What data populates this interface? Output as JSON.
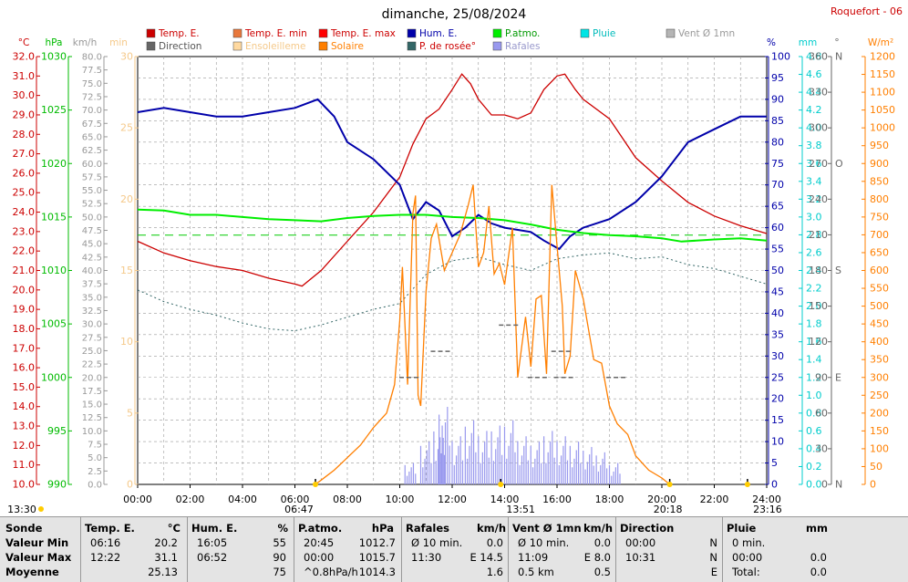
{
  "header": {
    "title": "dimanche, 25/08/2024",
    "station": "Roquefort - 06"
  },
  "legend": [
    {
      "label": "Temp. E.",
      "color": "#cc0000",
      "text_color": "#cc0000",
      "swatch": "square"
    },
    {
      "label": "Temp. E. min",
      "color": "#e8783c",
      "text_color": "#cc0000",
      "swatch": "square"
    },
    {
      "label": "Temp. E. max",
      "color": "#ff0000",
      "text_color": "#cc0000",
      "swatch": "square"
    },
    {
      "label": "Hum. E.",
      "color": "#0000aa",
      "text_color": "#0000aa",
      "swatch": "square"
    },
    {
      "label": "P.atmo.",
      "color": "#00ee00",
      "text_color": "#009900",
      "swatch": "square"
    },
    {
      "label": "Pluie",
      "color": "#00e5e5",
      "text_color": "#00bbbb",
      "swatch": "square"
    },
    {
      "label": "Vent Ø 1mn",
      "color": "#b5b5b5",
      "text_color": "#999999",
      "swatch": "square"
    },
    {
      "label": "Direction",
      "color": "#666666",
      "text_color": "#555555",
      "swatch": "square"
    },
    {
      "label": "Ensoleilleme",
      "color": "#ffd9a0",
      "text_color": "#f5c98a",
      "swatch": "square"
    },
    {
      "label": "Solaire",
      "color": "#ff7f00",
      "text_color": "#ff7f00",
      "swatch": "square"
    },
    {
      "label": "P. de rosée°",
      "color": "#336666",
      "text_color": "#cc0000",
      "swatch": "square"
    },
    {
      "label": "Rafales",
      "color": "#9999ee",
      "text_color": "#9999cc",
      "swatch": "square"
    }
  ],
  "axes": {
    "temperature": {
      "unit": "°C",
      "color": "#cc0000",
      "min": 10.0,
      "max": 32.0,
      "step": 1.0
    },
    "pressure": {
      "unit": "hPa",
      "color": "#00bb00",
      "min": 990,
      "max": 1030,
      "step": 5
    },
    "wind": {
      "unit": "km/h",
      "color": "#999999",
      "min": 0,
      "max": 80,
      "step": 2.5
    },
    "minutes": {
      "unit": "min",
      "color": "#f5c98a",
      "min": 0,
      "max": 30,
      "step": 5
    },
    "humidity": {
      "unit": "%",
      "color": "#0000aa",
      "min": 0,
      "max": 100,
      "step": 5
    },
    "rain": {
      "unit": "mm",
      "color": "#00cccc",
      "min": 0,
      "max": 4.8,
      "step": 0.2
    },
    "direction": {
      "unit": "°",
      "color": "#666666",
      "min": 0,
      "max": 360,
      "step": 30,
      "cardinal_labels": {
        "0": "N",
        "90": "E",
        "180": "S",
        "270": "O",
        "360": "N"
      }
    },
    "solar": {
      "unit": "W/m²",
      "color": "#ff7f00",
      "min": 0,
      "max": 1200,
      "step": 50
    },
    "time": {
      "labels": [
        "00:00",
        "02:00",
        "04:00",
        "06:00",
        "08:00",
        "10:00",
        "12:00",
        "14:00",
        "16:00",
        "18:00",
        "20:00",
        "22:00",
        "24:00"
      ]
    }
  },
  "markers": {
    "sunrise": "06:47",
    "solar_noon": "13:51",
    "sunset": "20:18",
    "moonset": "13:30",
    "moonrise": "23:16"
  },
  "chart_data": {
    "type": "line",
    "x_unit": "hours",
    "series": [
      {
        "name": "Temp. E.",
        "color": "#cc0000",
        "axis": "temperature",
        "points": [
          [
            0,
            22.5
          ],
          [
            1,
            21.9
          ],
          [
            2,
            21.5
          ],
          [
            3,
            21.2
          ],
          [
            4,
            21.0
          ],
          [
            5,
            20.6
          ],
          [
            6,
            20.3
          ],
          [
            6.27,
            20.2
          ],
          [
            7,
            21.0
          ],
          [
            8,
            22.5
          ],
          [
            9,
            24.0
          ],
          [
            10,
            25.8
          ],
          [
            10.5,
            27.5
          ],
          [
            11,
            28.8
          ],
          [
            11.5,
            29.3
          ],
          [
            12.0,
            30.3
          ],
          [
            12.37,
            31.1
          ],
          [
            12.7,
            30.6
          ],
          [
            13,
            29.8
          ],
          [
            13.5,
            29.0
          ],
          [
            14,
            29.0
          ],
          [
            14.5,
            28.8
          ],
          [
            15,
            29.1
          ],
          [
            15.5,
            30.3
          ],
          [
            16,
            31.0
          ],
          [
            16.3,
            31.1
          ],
          [
            16.7,
            30.3
          ],
          [
            17,
            29.8
          ],
          [
            18,
            28.8
          ],
          [
            18.5,
            27.8
          ],
          [
            19,
            26.8
          ],
          [
            20,
            25.6
          ],
          [
            21,
            24.5
          ],
          [
            22,
            23.8
          ],
          [
            23,
            23.3
          ],
          [
            24,
            22.9
          ]
        ]
      },
      {
        "name": "P. de rosée°",
        "color": "#336666",
        "axis": "temperature",
        "points": [
          [
            0,
            20.0
          ],
          [
            1,
            19.4
          ],
          [
            2,
            19.0
          ],
          [
            3,
            18.7
          ],
          [
            4,
            18.3
          ],
          [
            5,
            18.0
          ],
          [
            6,
            17.9
          ],
          [
            7,
            18.2
          ],
          [
            8,
            18.6
          ],
          [
            9,
            19.0
          ],
          [
            10,
            19.3
          ],
          [
            11,
            20.8
          ],
          [
            12,
            21.5
          ],
          [
            13,
            21.7
          ],
          [
            14,
            21.3
          ],
          [
            15,
            21.0
          ],
          [
            16,
            21.6
          ],
          [
            17,
            21.8
          ],
          [
            18,
            21.9
          ],
          [
            19,
            21.6
          ],
          [
            20,
            21.7
          ],
          [
            21,
            21.3
          ],
          [
            22,
            21.1
          ],
          [
            23,
            20.7
          ],
          [
            24,
            20.3
          ]
        ]
      },
      {
        "name": "Hum. E.",
        "color": "#0000aa",
        "axis": "humidity",
        "points": [
          [
            0,
            87
          ],
          [
            1,
            88
          ],
          [
            2,
            87
          ],
          [
            3,
            86
          ],
          [
            4,
            86
          ],
          [
            5,
            87
          ],
          [
            6,
            88
          ],
          [
            6.87,
            90
          ],
          [
            7.5,
            86
          ],
          [
            8,
            80
          ],
          [
            9,
            76
          ],
          [
            10,
            70
          ],
          [
            10.5,
            62
          ],
          [
            11,
            66
          ],
          [
            11.5,
            64
          ],
          [
            12,
            58
          ],
          [
            12.5,
            60
          ],
          [
            13,
            63
          ],
          [
            13.5,
            61
          ],
          [
            14,
            60
          ],
          [
            15,
            59
          ],
          [
            15.5,
            57
          ],
          [
            16.08,
            55
          ],
          [
            16.5,
            58
          ],
          [
            17,
            60
          ],
          [
            18,
            62
          ],
          [
            19,
            66
          ],
          [
            20,
            72
          ],
          [
            21,
            80
          ],
          [
            22,
            83
          ],
          [
            23,
            86
          ],
          [
            24,
            86
          ]
        ]
      },
      {
        "name": "P.atmo.",
        "color": "#00ee00",
        "axis": "pressure",
        "points": [
          [
            0,
            1015.7
          ],
          [
            1,
            1015.6
          ],
          [
            2,
            1015.2
          ],
          [
            3,
            1015.2
          ],
          [
            4,
            1015.0
          ],
          [
            5,
            1014.8
          ],
          [
            6,
            1014.7
          ],
          [
            7,
            1014.6
          ],
          [
            8,
            1014.9
          ],
          [
            9,
            1015.1
          ],
          [
            10,
            1015.2
          ],
          [
            11,
            1015.2
          ],
          [
            12,
            1015.0
          ],
          [
            13,
            1014.9
          ],
          [
            14,
            1014.7
          ],
          [
            15,
            1014.3
          ],
          [
            16,
            1013.8
          ],
          [
            17,
            1013.5
          ],
          [
            18,
            1013.3
          ],
          [
            19,
            1013.2
          ],
          [
            20,
            1013.0
          ],
          [
            20.75,
            1012.7
          ],
          [
            22,
            1012.9
          ],
          [
            23,
            1013.0
          ],
          [
            24,
            1012.8
          ]
        ]
      },
      {
        "name": "Solaire",
        "color": "#ff7f00",
        "axis": "solar",
        "points": [
          [
            6.78,
            0
          ],
          [
            7,
            12
          ],
          [
            7.5,
            40
          ],
          [
            8,
            75
          ],
          [
            8.5,
            110
          ],
          [
            9,
            160
          ],
          [
            9.5,
            200
          ],
          [
            9.8,
            280
          ],
          [
            10,
            460
          ],
          [
            10.1,
            610
          ],
          [
            10.3,
            280
          ],
          [
            10.5,
            760
          ],
          [
            10.6,
            810
          ],
          [
            10.7,
            250
          ],
          [
            10.8,
            220
          ],
          [
            11,
            540
          ],
          [
            11.2,
            690
          ],
          [
            11.4,
            730
          ],
          [
            11.7,
            600
          ],
          [
            12,
            650
          ],
          [
            12.3,
            700
          ],
          [
            12.6,
            780
          ],
          [
            12.8,
            840
          ],
          [
            13,
            610
          ],
          [
            13.2,
            650
          ],
          [
            13.4,
            780
          ],
          [
            13.6,
            590
          ],
          [
            13.8,
            620
          ],
          [
            14,
            560
          ],
          [
            14.3,
            720
          ],
          [
            14.5,
            300
          ],
          [
            14.8,
            470
          ],
          [
            15,
            330
          ],
          [
            15.2,
            520
          ],
          [
            15.4,
            530
          ],
          [
            15.6,
            310
          ],
          [
            15.8,
            840
          ],
          [
            16,
            670
          ],
          [
            16.2,
            500
          ],
          [
            16.3,
            310
          ],
          [
            16.5,
            360
          ],
          [
            16.7,
            600
          ],
          [
            17,
            520
          ],
          [
            17.4,
            350
          ],
          [
            17.7,
            340
          ],
          [
            18,
            220
          ],
          [
            18.3,
            170
          ],
          [
            18.7,
            140
          ],
          [
            19,
            80
          ],
          [
            19.5,
            40
          ],
          [
            20,
            18
          ],
          [
            20.3,
            0
          ]
        ]
      },
      {
        "name": "Rafales",
        "color": "#9999ee",
        "axis": "wind",
        "points": [
          [
            10.2,
            4
          ],
          [
            10.8,
            8
          ],
          [
            11.3,
            11
          ],
          [
            11.5,
            14.5
          ],
          [
            12,
            9
          ],
          [
            12.5,
            12
          ],
          [
            13,
            10
          ],
          [
            13.5,
            11
          ],
          [
            14,
            12
          ],
          [
            14.5,
            9
          ],
          [
            15,
            8
          ],
          [
            15.5,
            10
          ],
          [
            16,
            9
          ],
          [
            16.5,
            8
          ],
          [
            17,
            7
          ],
          [
            17.5,
            6
          ],
          [
            18,
            4
          ],
          [
            18.5,
            0
          ]
        ]
      },
      {
        "name": "Direction",
        "color": "#666666",
        "axis": "direction",
        "points": [
          [
            10.4,
            90
          ],
          [
            15.3,
            90
          ],
          [
            16.3,
            90
          ],
          [
            18.3,
            90
          ],
          [
            11.6,
            112
          ],
          [
            16.2,
            112
          ],
          [
            14.2,
            134
          ]
        ]
      }
    ]
  },
  "summary": {
    "columns": [
      {
        "title": "Sonde",
        "unit": "",
        "rows": [
          "Valeur Min",
          "Valeur Max",
          "Moyenne"
        ]
      },
      {
        "title": "Temp. E.",
        "unit": "°C",
        "rows": [
          [
            "06:16",
            "20.2"
          ],
          [
            "12:22",
            "31.1"
          ],
          [
            "",
            "25.13"
          ]
        ]
      },
      {
        "title": "Hum. E.",
        "unit": "%",
        "rows": [
          [
            "16:05",
            "55"
          ],
          [
            "06:52",
            "90"
          ],
          [
            "",
            "75"
          ]
        ]
      },
      {
        "title": "P.atmo.",
        "unit": "hPa",
        "rows": [
          [
            "20:45",
            "1012.7"
          ],
          [
            "00:00",
            "1015.7"
          ],
          [
            "^0.8hPa/h",
            "1014.3"
          ]
        ]
      },
      {
        "title": "Rafales",
        "unit": "km/h",
        "rows": [
          [
            "Ø 10 min.",
            "0.0"
          ],
          [
            "11:30",
            "E 14.5"
          ],
          [
            "",
            "1.6"
          ]
        ]
      },
      {
        "title": "Vent Ø 1mn",
        "unit": "km/h",
        "rows": [
          [
            "Ø 10 min.",
            "0.0"
          ],
          [
            "11:09",
            "E 8.0"
          ],
          [
            "0.5 km",
            "0.5"
          ]
        ]
      },
      {
        "title": "Direction",
        "unit": "",
        "rows": [
          [
            "00:00",
            "N"
          ],
          [
            "10:31",
            "N"
          ],
          [
            "",
            "E"
          ]
        ]
      },
      {
        "title": "Pluie",
        "unit": "mm",
        "rows": [
          [
            "0 min.",
            ""
          ],
          [
            "00:00",
            "0.0"
          ],
          [
            "Total:",
            "0.0"
          ]
        ]
      }
    ]
  }
}
